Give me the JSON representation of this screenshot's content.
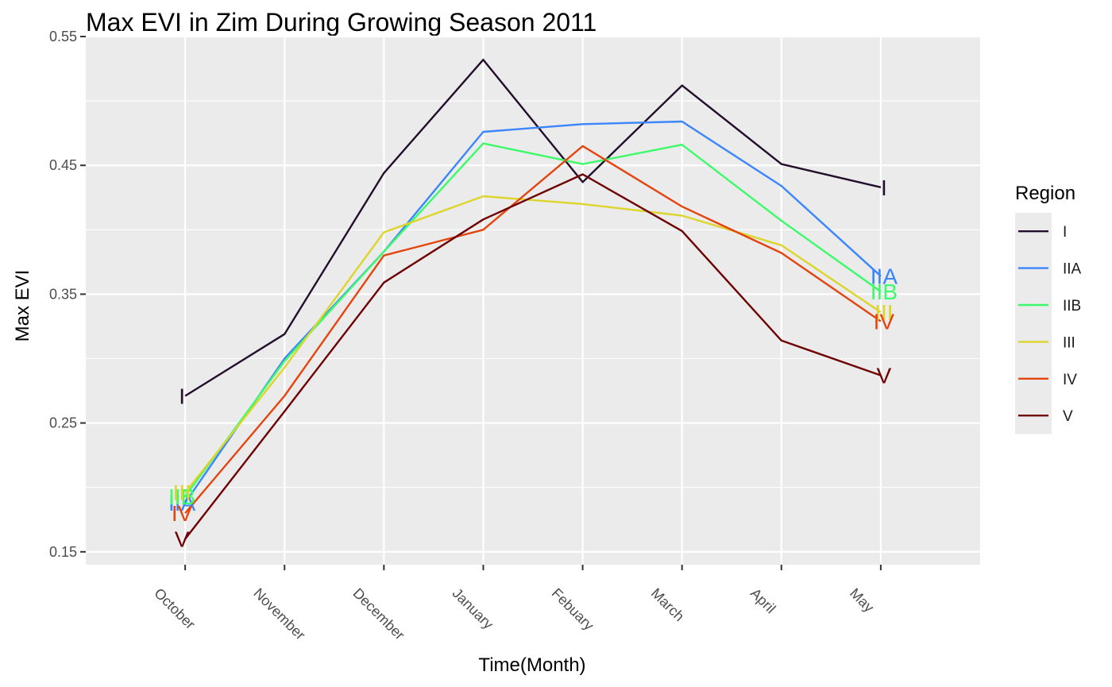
{
  "chart_data": {
    "type": "line",
    "title": "Max EVI in Zim During Growing Season 2011",
    "xlabel": "Time(Month)",
    "ylabel": "Max EVI",
    "categories": [
      "October",
      "November",
      "December",
      "January",
      "Febuary",
      "March",
      "April",
      "May"
    ],
    "ylim": [
      0.14,
      0.55
    ],
    "yticks": [
      0.15,
      0.25,
      0.35,
      0.45,
      0.55
    ],
    "ytick_labels": [
      "0.15",
      "0.25",
      "0.35",
      "0.45",
      "0.55"
    ],
    "grid": true,
    "legend": {
      "title": "Region",
      "position": "right"
    },
    "series": [
      {
        "name": "I",
        "color": "#230e2c",
        "values": [
          0.271,
          0.319,
          0.444,
          0.532,
          0.437,
          0.512,
          0.451,
          0.433
        ]
      },
      {
        "name": "IIA",
        "color": "#3a86fa",
        "values": [
          0.188,
          0.3,
          0.383,
          0.476,
          0.482,
          0.484,
          0.434,
          0.364
        ]
      },
      {
        "name": "IIB",
        "color": "#3dfa6a",
        "values": [
          0.193,
          0.298,
          0.383,
          0.467,
          0.451,
          0.466,
          0.407,
          0.352
        ]
      },
      {
        "name": "III",
        "color": "#dcd52c",
        "values": [
          0.196,
          0.293,
          0.398,
          0.426,
          0.42,
          0.411,
          0.388,
          0.336
        ]
      },
      {
        "name": "IV",
        "color": "#e4450f",
        "values": [
          0.18,
          0.271,
          0.38,
          0.4,
          0.465,
          0.418,
          0.382,
          0.329
        ]
      },
      {
        "name": "V",
        "color": "#6e0204",
        "values": [
          0.16,
          0.259,
          0.359,
          0.408,
          0.443,
          0.399,
          0.314,
          0.287
        ]
      }
    ]
  }
}
